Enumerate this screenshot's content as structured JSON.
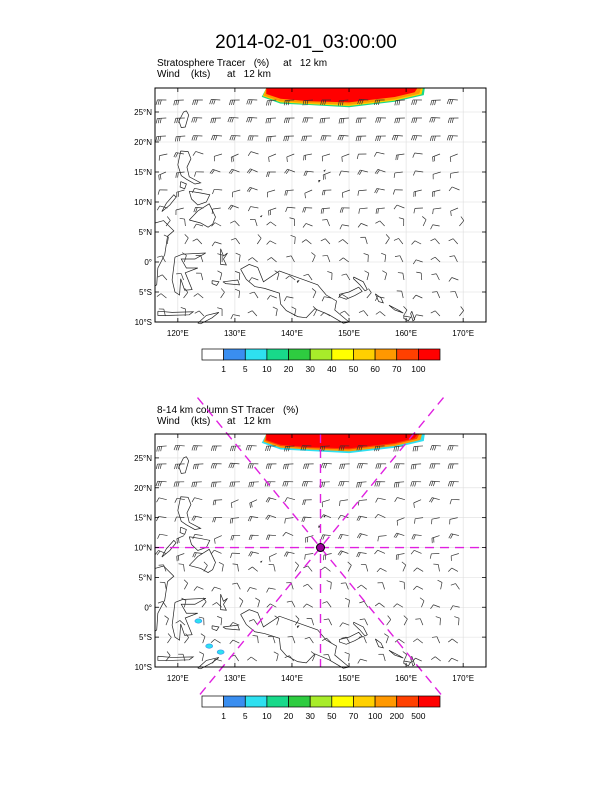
{
  "title": "2014-02-01_03:00:00",
  "panels": [
    {
      "id": "top",
      "line1": "Stratosphere Tracer   (%)     at   12 km",
      "line2": "Wind    (kts)      at   12 km",
      "lat_labels": [
        "25°N",
        "20°N",
        "15°N",
        "10°N",
        "5°N",
        "0°",
        "5°S",
        "10°S"
      ],
      "lon_labels": [
        "120°E",
        "130°E",
        "140°E",
        "150°E",
        "160°E",
        "170°E"
      ],
      "colorbar_labels": [
        "1",
        "5",
        "10",
        "20",
        "30",
        "40",
        "50",
        "60",
        "70",
        "100"
      ]
    },
    {
      "id": "bottom",
      "line1": "8-14 km column ST Tracer   (%)",
      "line2": "Wind    (kts)      at   12 km",
      "lat_labels": [
        "25°N",
        "20°N",
        "15°N",
        "10°N",
        "5°N",
        "0°",
        "5°S",
        "10°S"
      ],
      "lon_labels": [
        "120°E",
        "130°E",
        "140°E",
        "150°E",
        "160°E",
        "170°E"
      ],
      "colorbar_labels": [
        "1",
        "5",
        "10",
        "20",
        "30",
        "50",
        "70",
        "100",
        "200",
        "500"
      ]
    }
  ],
  "colors": {
    "cb": [
      "#ffffff",
      "#3a8ef0",
      "#2ee0f0",
      "#18d98a",
      "#2ecc40",
      "#a8ec2a",
      "#ffff00",
      "#ffd000",
      "#ff9800",
      "#ff4000",
      "#ff0000"
    ],
    "crosshair": "#e020e0"
  },
  "map": {
    "lon_range": [
      116,
      174
    ],
    "lat_range": [
      -10,
      29
    ],
    "storm_center": {
      "lon": 145,
      "lat": 10
    }
  }
}
